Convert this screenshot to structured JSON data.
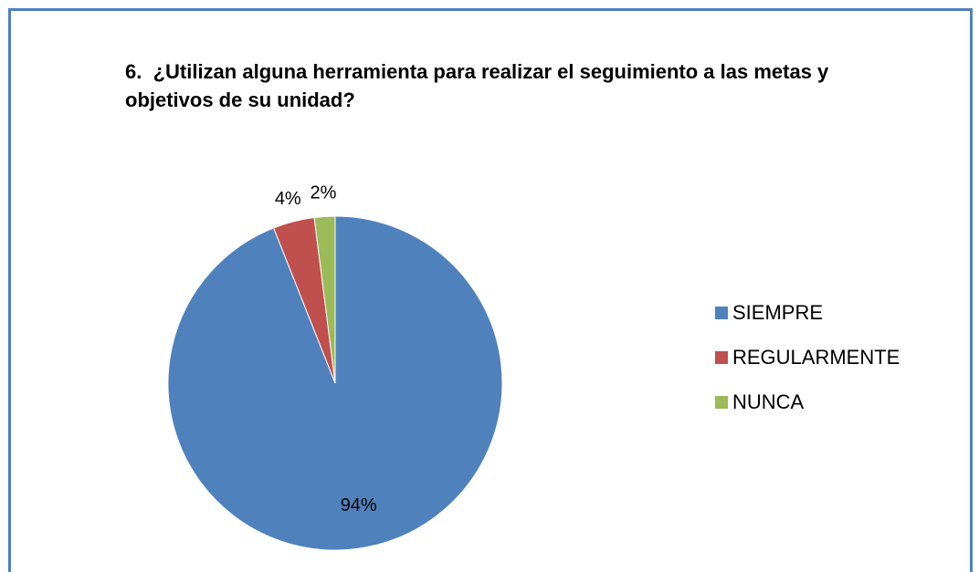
{
  "chart_data": {
    "type": "pie",
    "title": "6.  ¿Utilizan alguna herramienta para realizar el seguimiento a las metas y objetivos de su unidad?",
    "categories": [
      "SIEMPRE",
      "REGULARMENTE",
      "NUNCA"
    ],
    "values": [
      94,
      4,
      2
    ],
    "value_labels": [
      "94%",
      "4%",
      "2%"
    ],
    "colors": [
      "#4f81bd",
      "#c0504d",
      "#9bbb59"
    ],
    "legend": "right"
  }
}
